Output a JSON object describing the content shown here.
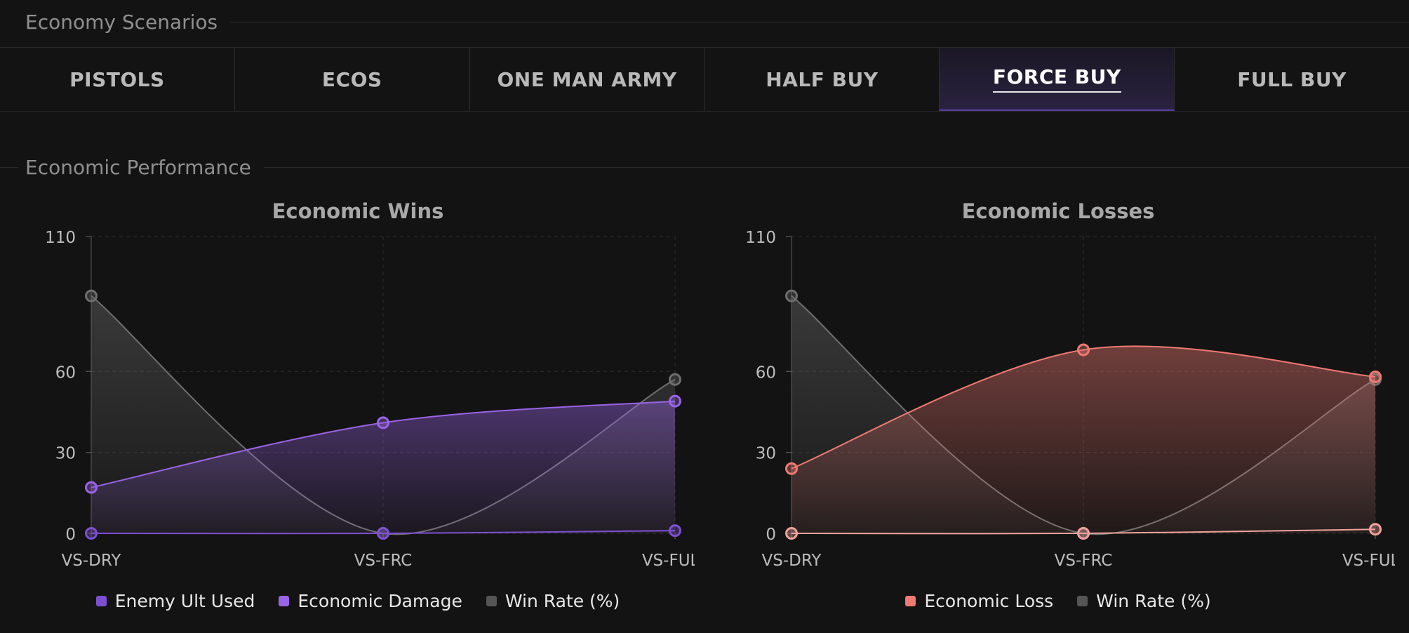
{
  "header": {
    "economy_title": "Economy Scenarios",
    "performance_title": "Economic Performance"
  },
  "tabs": [
    {
      "label": "PISTOLS",
      "active": false
    },
    {
      "label": "ECOS",
      "active": false
    },
    {
      "label": "ONE MAN ARMY",
      "active": false
    },
    {
      "label": "HALF BUY",
      "active": false
    },
    {
      "label": "FORCE BUY",
      "active": true
    },
    {
      "label": "FULL BUY",
      "active": false
    }
  ],
  "colors": {
    "background": "#131313",
    "purple": "#9a64e6",
    "red": "#ef7a72",
    "grey": "#6e6e6e"
  },
  "chart_data": [
    {
      "type": "area",
      "title": "Economic Wins",
      "categories": [
        "VS-DRY",
        "VS-FRC",
        "VS-FULL"
      ],
      "yticks": [
        0,
        30,
        60,
        110
      ],
      "ylim": [
        0,
        110
      ],
      "grid": true,
      "legend_position": "bottom",
      "series": [
        {
          "name": "Enemy Ult Used",
          "values": [
            0,
            0,
            1
          ],
          "color": "#7d4fd0",
          "fill": false
        },
        {
          "name": "Economic Damage",
          "values": [
            17,
            41,
            49
          ],
          "color": "#9a64e6",
          "fill": true
        },
        {
          "name": "Win Rate (%)",
          "values": [
            88,
            0,
            57
          ],
          "color": "#6e6e6e",
          "fill": true
        }
      ]
    },
    {
      "type": "area",
      "title": "Economic Losses",
      "categories": [
        "VS-DRY",
        "VS-FRC",
        "VS-FULL"
      ],
      "yticks": [
        0,
        30,
        60,
        110
      ],
      "ylim": [
        0,
        110
      ],
      "grid": true,
      "legend_position": "bottom",
      "series": [
        {
          "name": "Economic Loss",
          "values": [
            24,
            68,
            58
          ],
          "color": "#ef7a72",
          "fill": true
        },
        {
          "name": "",
          "values": [
            0,
            0,
            1.5
          ],
          "color": "#f0a39c",
          "fill": false
        },
        {
          "name": "Win Rate (%)",
          "values": [
            88,
            0,
            57
          ],
          "color": "#6e6e6e",
          "fill": true
        }
      ]
    }
  ]
}
